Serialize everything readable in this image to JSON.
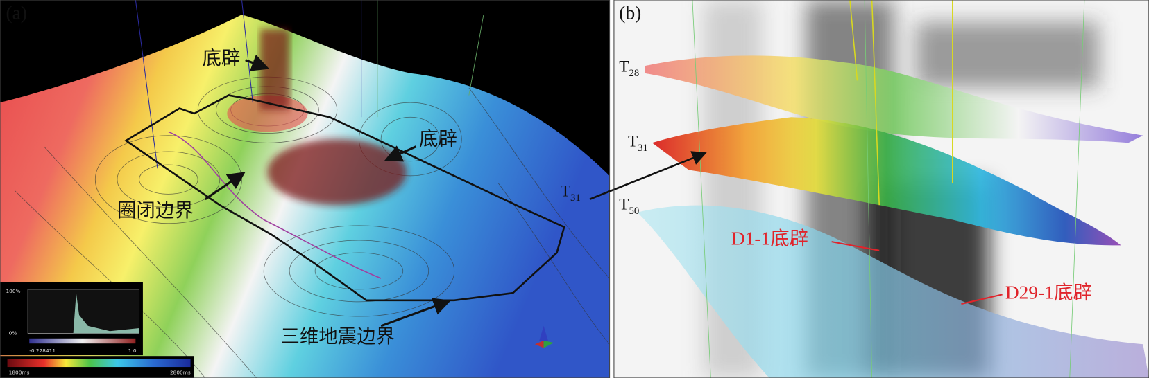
{
  "panels": [
    {
      "label": "(a)",
      "annotations": [
        "底辟",
        "底辟",
        "圈闭边界",
        "三维地震边界"
      ],
      "histogram": {
        "y_max": "100%",
        "y_min": "0%",
        "x_min": "-0.228411",
        "x_max": "1.0"
      },
      "colorbar": {
        "min": "1800ms",
        "max": "2800ms"
      }
    },
    {
      "label": "(b)",
      "horizons": [
        {
          "base": "T",
          "sub": "28"
        },
        {
          "base": "T",
          "sub": "31"
        },
        {
          "base": "T",
          "sub": "50"
        }
      ],
      "annotations": [
        "D1-1底辟",
        "D29-1底辟"
      ]
    }
  ]
}
